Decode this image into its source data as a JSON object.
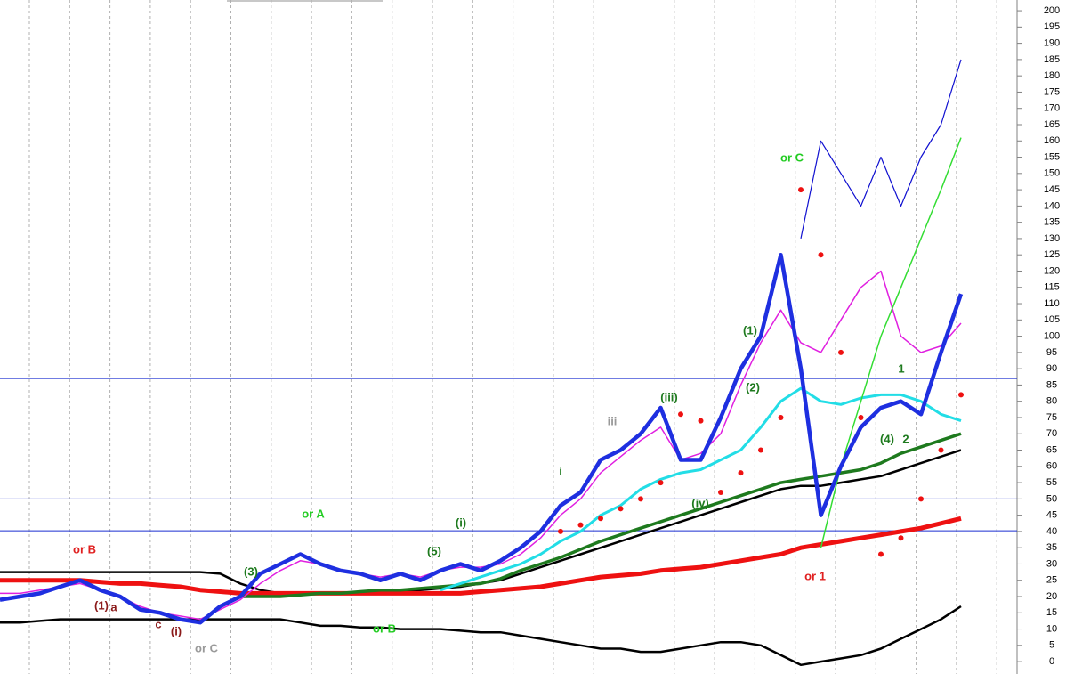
{
  "chart_data": {
    "type": "line",
    "x": [
      0,
      1,
      2,
      3,
      4,
      5,
      6,
      7,
      8,
      9,
      10,
      11,
      12,
      13,
      14,
      15,
      16,
      17,
      18,
      19,
      20,
      21,
      22,
      23,
      24,
      25,
      26,
      27,
      28,
      29,
      30,
      31,
      32,
      33,
      34,
      35,
      36,
      37,
      38,
      39,
      40,
      41,
      42,
      43,
      44,
      45,
      46,
      47,
      48
    ],
    "xlim": [
      0,
      50.8
    ],
    "ylim": [
      -3.8,
      203.3
    ],
    "yticks": [
      0,
      5,
      10,
      15,
      20,
      25,
      30,
      35,
      40,
      45,
      50,
      55,
      60,
      65,
      70,
      75,
      80,
      85,
      90,
      95,
      100,
      105,
      110,
      115,
      120,
      125,
      130,
      135,
      140,
      145,
      150,
      155,
      160,
      165,
      170,
      175,
      180,
      185,
      190,
      195,
      200
    ],
    "grid": true,
    "hlines": [
      87,
      50,
      40.2
    ],
    "hline_color": "#1a2fd0",
    "series": [
      {
        "color": "#000000",
        "values": [
          12,
          12,
          12.5,
          13,
          13,
          13,
          13,
          13,
          13,
          13,
          13,
          13,
          13,
          13,
          13,
          12,
          11,
          11,
          10.5,
          10.5,
          10,
          10,
          10,
          9.5,
          9,
          9,
          8,
          7,
          6,
          5,
          4,
          4,
          3,
          3,
          4,
          5,
          6,
          6,
          5,
          2,
          -1,
          0,
          1,
          2,
          4,
          7,
          10,
          13,
          17
        ]
      },
      {
        "color": "#000000",
        "values": [
          27.5,
          27.5,
          27.5,
          27.5,
          27.5,
          27.5,
          27.5,
          27.5,
          27.5,
          27.5,
          27.5,
          27,
          24,
          22,
          21,
          21,
          21,
          21,
          21,
          21.5,
          22,
          22,
          22.5,
          23,
          24,
          25,
          27,
          29,
          31,
          33,
          35,
          37,
          39,
          41,
          43,
          45,
          47,
          49,
          51,
          53,
          54,
          54,
          55,
          56,
          57,
          59,
          61,
          63,
          65
        ]
      },
      {
        "color": "#ee1111",
        "values": [
          25,
          25,
          25,
          25,
          25,
          24.5,
          24,
          24,
          23.5,
          23,
          22,
          21.5,
          21,
          21,
          21,
          21,
          21,
          21,
          21,
          21,
          21,
          21,
          21,
          21,
          21.5,
          22,
          22.5,
          23,
          24,
          25,
          26,
          26.5,
          27,
          28,
          28.5,
          29,
          30,
          31,
          32,
          33,
          35,
          36,
          37,
          38,
          39,
          40,
          41,
          42.5,
          44
        ]
      },
      {
        "color": "#1e7a1e",
        "values": [
          null,
          null,
          null,
          null,
          null,
          null,
          null,
          null,
          null,
          null,
          null,
          null,
          20,
          20,
          20,
          20.5,
          21,
          21,
          21.5,
          22,
          22,
          22.5,
          23,
          23.5,
          24,
          25.5,
          28,
          30,
          32,
          34.5,
          37,
          39,
          41,
          43,
          45,
          47,
          49,
          51,
          53,
          55,
          56,
          57,
          58,
          59,
          61,
          64,
          66,
          68,
          70
        ]
      },
      {
        "color": "#22dde6",
        "values": [
          null,
          null,
          null,
          null,
          null,
          null,
          null,
          null,
          null,
          null,
          null,
          null,
          null,
          null,
          null,
          null,
          null,
          null,
          null,
          null,
          null,
          null,
          22,
          24,
          26,
          28,
          30,
          33,
          37,
          40,
          45,
          48,
          53,
          56,
          58,
          59,
          62,
          65,
          72,
          80,
          84,
          80,
          79,
          81,
          82,
          82,
          80,
          76,
          74
        ]
      },
      {
        "color": "#e020e0",
        "values": [
          21,
          21,
          22,
          23,
          24,
          22,
          20,
          17,
          15,
          14,
          13,
          16,
          19,
          24,
          28,
          31,
          30,
          28,
          27,
          26,
          27,
          26,
          28,
          29,
          29,
          30,
          33,
          38,
          45,
          50,
          58,
          63,
          68,
          72,
          62,
          64,
          70,
          85,
          98,
          108,
          98,
          95,
          105,
          115,
          120,
          100,
          95,
          97,
          104
        ]
      },
      {
        "color": "#1010d0",
        "values": [
          null,
          null,
          null,
          null,
          null,
          null,
          null,
          null,
          null,
          null,
          null,
          null,
          null,
          null,
          null,
          null,
          null,
          null,
          null,
          null,
          null,
          null,
          null,
          null,
          null,
          null,
          null,
          null,
          null,
          null,
          null,
          null,
          null,
          null,
          null,
          null,
          null,
          null,
          null,
          null,
          130,
          160,
          150,
          140,
          155,
          140,
          155,
          165,
          185
        ]
      },
      {
        "color": "#33dd33",
        "values": [
          null,
          null,
          null,
          null,
          null,
          null,
          null,
          null,
          null,
          null,
          null,
          null,
          null,
          null,
          null,
          null,
          null,
          null,
          null,
          null,
          null,
          null,
          null,
          null,
          null,
          null,
          null,
          null,
          null,
          null,
          null,
          null,
          null,
          null,
          null,
          null,
          null,
          null,
          null,
          null,
          null,
          35,
          60,
          80,
          100,
          115,
          130,
          145,
          161
        ]
      },
      {
        "color": "#1e2fe0",
        "values": [
          19,
          20,
          21,
          23,
          25,
          22,
          20,
          16,
          15,
          13,
          12,
          17,
          20,
          27,
          30,
          33,
          30,
          28,
          27,
          25,
          27,
          25,
          28,
          30,
          28,
          31,
          35,
          40,
          48,
          52,
          62,
          65,
          70,
          78,
          62,
          62,
          75,
          90,
          100,
          125,
          90,
          45,
          60,
          72,
          78,
          80,
          76,
          95,
          113
        ]
      },
      {
        "color": "#ee1111",
        "marker": "dots",
        "values": [
          null,
          null,
          null,
          null,
          null,
          null,
          null,
          null,
          null,
          null,
          null,
          null,
          null,
          null,
          null,
          null,
          null,
          null,
          null,
          null,
          null,
          null,
          null,
          null,
          null,
          null,
          null,
          null,
          40,
          42,
          44,
          47,
          50,
          55,
          76,
          74,
          52,
          58,
          65,
          75,
          145,
          125,
          95,
          75,
          33,
          38,
          50,
          65,
          82
        ]
      }
    ],
    "annotations": [
      {
        "text": "or B",
        "color": "#e02020"
      },
      {
        "text": "or A",
        "color": "#22cc22"
      },
      {
        "text": "or B",
        "color": "#22cc22"
      },
      {
        "text": "or C",
        "color": "#999999"
      },
      {
        "text": "or C",
        "color": "#22cc22"
      },
      {
        "text": "or 1",
        "color": "#e02020"
      },
      {
        "text": "(iv)",
        "color": "#1e7a1e"
      },
      {
        "text": "(1)",
        "color": "#1e7a1e"
      },
      {
        "text": "(2)",
        "color": "#1e7a1e"
      },
      {
        "text": "(3)",
        "color": "#1e7a1e"
      },
      {
        "text": "(4)",
        "color": "#1e7a1e"
      },
      {
        "text": "(5)",
        "color": "#1e7a1e"
      },
      {
        "text": "i",
        "color": "#1e7a1e"
      },
      {
        "text": "iii",
        "color": "#999999"
      },
      {
        "text": "(iii)",
        "color": "#1e7a1e"
      },
      {
        "text": "(i)",
        "color": "#1e7a1e"
      },
      {
        "text": "(1)",
        "color": "#8b1a1a"
      },
      {
        "text": "a",
        "color": "#8b1a1a"
      },
      {
        "text": "c",
        "color": "#8b1a1a"
      },
      {
        "text": "(i)",
        "color": "#8b1a1a"
      },
      {
        "text": "1",
        "color": "#1e7a1e"
      },
      {
        "text": "2",
        "color": "#1e7a1e"
      }
    ]
  }
}
